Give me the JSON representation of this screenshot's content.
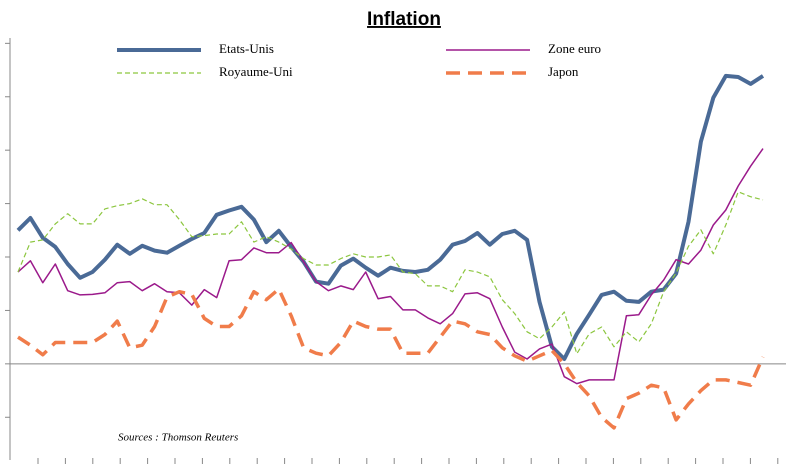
{
  "chart_data": {
    "type": "line",
    "title": "Inflation",
    "annotation": "Sources : Thomson Reuters",
    "categories": [
      null,
      null,
      null,
      null,
      null,
      null,
      null,
      null,
      null,
      null,
      null,
      null,
      null,
      null,
      null,
      null,
      null,
      null,
      null,
      null,
      null,
      null,
      null,
      null,
      null,
      null,
      null,
      null,
      null,
      null,
      null,
      null,
      null,
      null,
      null,
      null,
      null,
      null,
      null,
      null,
      null,
      null,
      null,
      null,
      null,
      null,
      null,
      null,
      null,
      null,
      null,
      null,
      null,
      null,
      null,
      null,
      null,
      null,
      null,
      null,
      null
    ],
    "ylim": [
      -1.8,
      6.1
    ],
    "yticks": [
      -1,
      0,
      1,
      2,
      3,
      4,
      5,
      6
    ],
    "zero_line": true,
    "series": [
      {
        "name": "Etats-Unis",
        "color": "#4a6a96",
        "style": "solid",
        "values": [
          2.5,
          2.73,
          2.36,
          2.19,
          1.87,
          1.61,
          1.72,
          1.95,
          2.23,
          2.06,
          2.21,
          2.12,
          2.08,
          2.21,
          2.34,
          2.45,
          2.79,
          2.87,
          2.94,
          2.7,
          2.28,
          2.49,
          2.19,
          1.91,
          1.54,
          1.5,
          1.84,
          1.97,
          1.8,
          1.65,
          1.8,
          1.74,
          1.72,
          1.76,
          1.95,
          2.23,
          2.3,
          2.45,
          2.23,
          2.43,
          2.49,
          2.32,
          1.16,
          0.32,
          0.09,
          0.56,
          0.92,
          1.29,
          1.35,
          1.18,
          1.16,
          1.35,
          1.39,
          1.69,
          2.66,
          4.16,
          4.98,
          5.39,
          5.37,
          5.24,
          5.39
        ]
      },
      {
        "name": "Zone euro",
        "color": "#9b1a8b",
        "style": "solid",
        "values": [
          1.72,
          1.93,
          1.52,
          1.87,
          1.37,
          1.29,
          1.3,
          1.33,
          1.52,
          1.54,
          1.37,
          1.5,
          1.35,
          1.33,
          1.1,
          1.39,
          1.24,
          1.93,
          1.95,
          2.17,
          2.08,
          2.08,
          2.27,
          1.91,
          1.54,
          1.37,
          1.46,
          1.39,
          1.72,
          1.22,
          1.26,
          1.01,
          1.01,
          0.86,
          0.75,
          0.94,
          1.31,
          1.33,
          1.22,
          0.69,
          0.22,
          0.09,
          0.28,
          0.37,
          -0.24,
          -0.37,
          -0.3,
          -0.3,
          -0.3,
          0.9,
          0.92,
          1.29,
          1.57,
          1.95,
          1.87,
          2.13,
          2.6,
          2.88,
          3.33,
          3.7,
          4.03
        ]
      },
      {
        "name": "Royaume-Uni",
        "color": "#8cc63f",
        "style": "dashed",
        "values": [
          1.72,
          2.28,
          2.32,
          2.62,
          2.81,
          2.62,
          2.62,
          2.9,
          2.96,
          3.0,
          3.09,
          2.98,
          2.98,
          2.7,
          2.38,
          2.4,
          2.43,
          2.43,
          2.66,
          2.28,
          2.38,
          2.28,
          2.15,
          1.97,
          1.85,
          1.85,
          1.97,
          2.06,
          2.0,
          2.0,
          2.04,
          1.72,
          1.69,
          1.46,
          1.46,
          1.35,
          1.76,
          1.72,
          1.63,
          1.2,
          0.94,
          0.6,
          0.47,
          0.69,
          0.97,
          0.19,
          0.56,
          0.69,
          0.32,
          0.6,
          0.41,
          0.75,
          1.35,
          1.7,
          2.2,
          2.51,
          2.06,
          2.6,
          3.22,
          3.13,
          3.07
        ]
      },
      {
        "name": "Japon",
        "color": "#f07c4a",
        "style": "dashed",
        "values": [
          0.5,
          0.35,
          0.17,
          0.4,
          0.4,
          0.4,
          0.4,
          0.55,
          0.8,
          0.3,
          0.35,
          0.7,
          1.25,
          1.35,
          1.3,
          0.85,
          0.7,
          0.7,
          0.9,
          1.35,
          1.2,
          1.4,
          0.9,
          0.3,
          0.2,
          0.15,
          0.4,
          0.8,
          0.7,
          0.65,
          0.65,
          0.2,
          0.2,
          0.2,
          0.5,
          0.8,
          0.75,
          0.6,
          0.55,
          0.3,
          0.15,
          0.05,
          0.15,
          0.25,
          0.0,
          -0.35,
          -0.6,
          -1.0,
          -1.2,
          -0.65,
          -0.55,
          -0.4,
          -0.45,
          -1.05,
          -0.75,
          -0.5,
          -0.3,
          -0.3,
          -0.35,
          -0.4,
          0.13
        ]
      }
    ]
  }
}
